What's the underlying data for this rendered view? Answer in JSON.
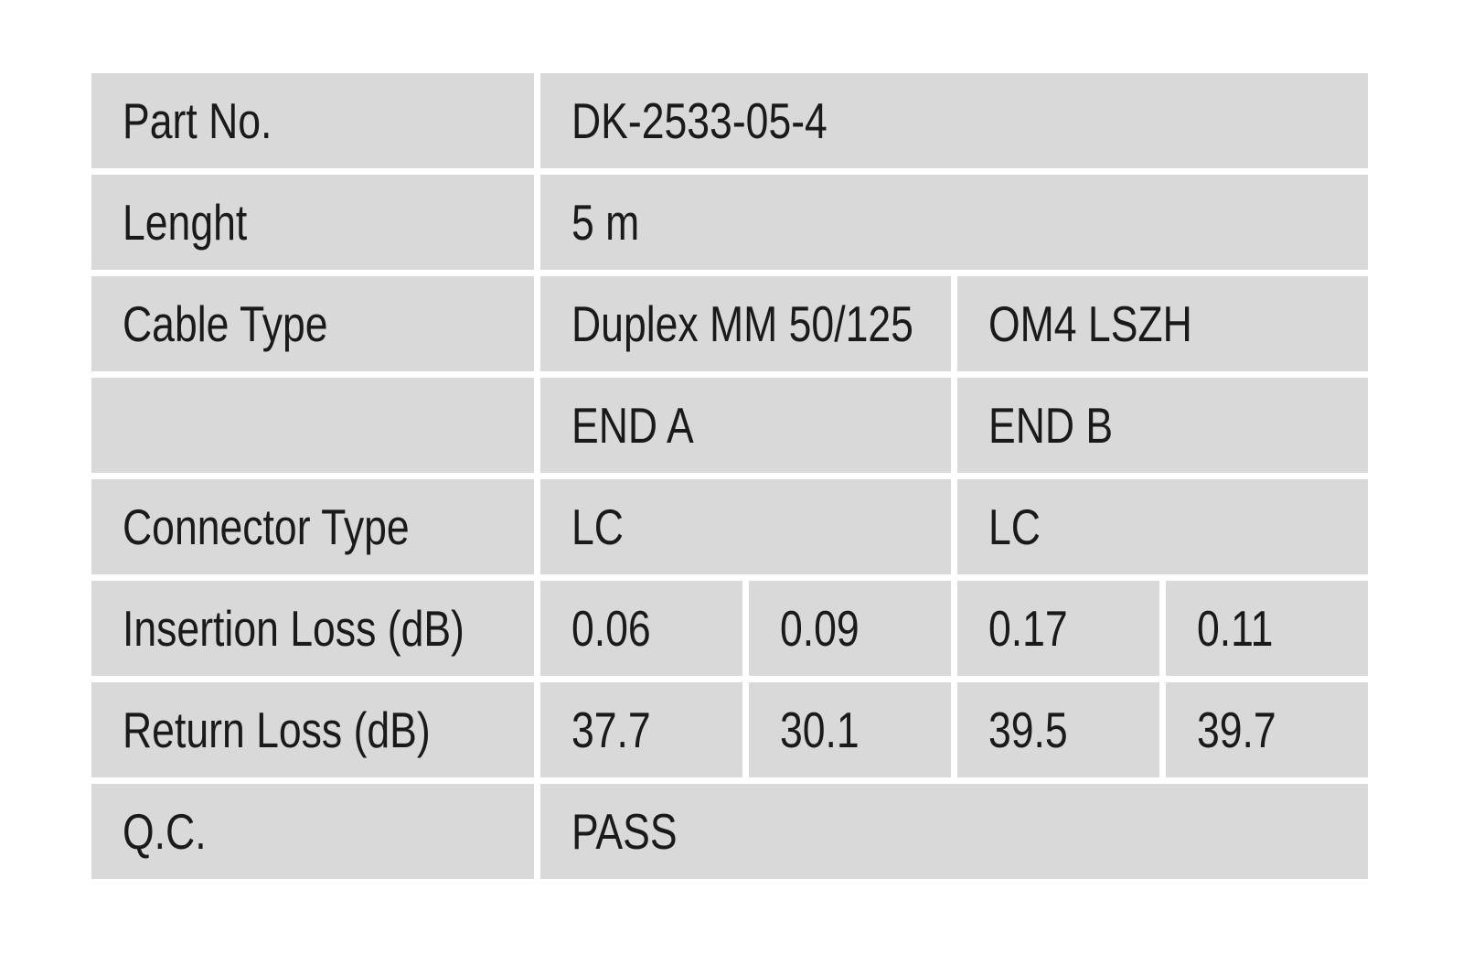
{
  "colors": {
    "page_background": "#ffffff",
    "cell_background": "#d9d9d9",
    "text": "#1a1a1a"
  },
  "table": {
    "rows": [
      {
        "key": "part-no",
        "label": "Part No.",
        "cells": [
          {
            "text": "DK-2533-05-4",
            "span": 4
          }
        ]
      },
      {
        "key": "length",
        "label": "Lenght",
        "cells": [
          {
            "text": "5 m",
            "span": 4
          }
        ]
      },
      {
        "key": "cable-type",
        "label": "Cable Type",
        "cells": [
          {
            "text": "Duplex MM 50/125",
            "span": 2
          },
          {
            "text": "OM4 LSZH",
            "span": 2
          }
        ]
      },
      {
        "key": "ends-header",
        "label": "",
        "cells": [
          {
            "text": "END A",
            "span": 2
          },
          {
            "text": "END B",
            "span": 2
          }
        ]
      },
      {
        "key": "connector-type",
        "label": "Connector Type",
        "cells": [
          {
            "text": "LC",
            "span": 2
          },
          {
            "text": "LC",
            "span": 2
          }
        ]
      },
      {
        "key": "insertion-loss",
        "label": "Insertion Loss (dB)",
        "cells": [
          {
            "text": "0.06",
            "span": 1
          },
          {
            "text": "0.09",
            "span": 1
          },
          {
            "text": "0.17",
            "span": 1
          },
          {
            "text": "0.11",
            "span": 1
          }
        ]
      },
      {
        "key": "return-loss",
        "label": "Return Loss (dB)",
        "cells": [
          {
            "text": "37.7",
            "span": 1
          },
          {
            "text": "30.1",
            "span": 1
          },
          {
            "text": "39.5",
            "span": 1
          },
          {
            "text": "39.7",
            "span": 1
          }
        ]
      },
      {
        "key": "qc",
        "label": "Q.C.",
        "cells": [
          {
            "text": "PASS",
            "span": 4
          }
        ]
      }
    ]
  }
}
